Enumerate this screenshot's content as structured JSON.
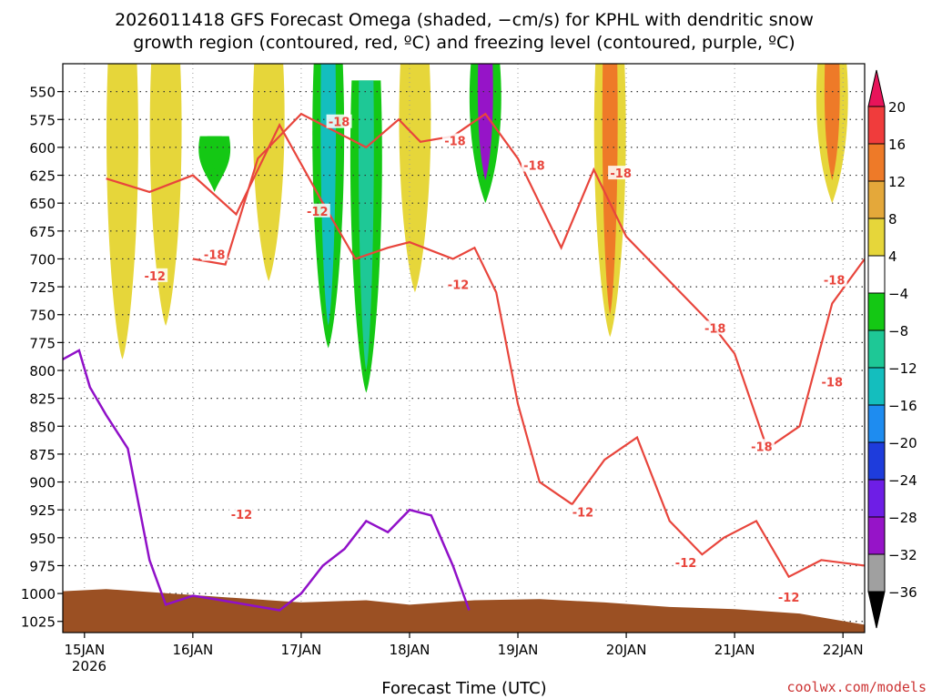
{
  "title_line1": "2026011418 GFS Forecast Omega (shaded, −cm/s) for KPHL with dendritic snow",
  "title_line2": "growth region (contoured, red, ºC) and freezing level (contoured, purple, ºC)",
  "credit": "coolwx.com/models",
  "chart_data": {
    "type": "heatmap",
    "xlabel": "Forecast Time (UTC)",
    "x_ticks": [
      "15JAN",
      "16JAN",
      "17JAN",
      "18JAN",
      "19JAN",
      "20JAN",
      "21JAN",
      "22JAN"
    ],
    "x_year_label": "2026",
    "x_range_days": [
      14.8,
      22.2
    ],
    "y_ticks": [
      550,
      575,
      600,
      625,
      650,
      675,
      700,
      725,
      750,
      775,
      800,
      825,
      850,
      875,
      900,
      925,
      950,
      975,
      1000,
      1025
    ],
    "y_range_hpa": [
      525,
      1035
    ],
    "colorbar": {
      "labels": [
        "20",
        "16",
        "12",
        "8",
        "4",
        "−4",
        "−8",
        "−12",
        "−16",
        "−20",
        "−24",
        "−28",
        "−32",
        "−36"
      ],
      "colors": [
        "#e8145a",
        "#f03c3c",
        "#ee7a28",
        "#e4a83a",
        "#e6d63a",
        "#ffffff",
        "#14c814",
        "#1ec896",
        "#14bebe",
        "#1e8cf0",
        "#1e3cdc",
        "#6e1ee6",
        "#9614c8",
        "#a0a0a0",
        "#000000"
      ]
    },
    "grid": true,
    "ascent_columns": [
      {
        "day": 15.35,
        "top": 525,
        "bottom": 790,
        "value": 4
      },
      {
        "day": 15.75,
        "top": 525,
        "bottom": 760,
        "value": 4
      },
      {
        "day": 16.2,
        "top": 590,
        "bottom": 640,
        "value": -4
      },
      {
        "day": 16.7,
        "top": 525,
        "bottom": 720,
        "value": 4
      },
      {
        "day": 17.25,
        "top": 525,
        "bottom": 780,
        "value": -12
      },
      {
        "day": 17.6,
        "top": 540,
        "bottom": 820,
        "value": -8
      },
      {
        "day": 18.05,
        "top": 525,
        "bottom": 730,
        "value": 4
      },
      {
        "day": 18.7,
        "top": 525,
        "bottom": 650,
        "value": -28
      },
      {
        "day": 19.85,
        "top": 525,
        "bottom": 770,
        "value": 12
      },
      {
        "day": 21.9,
        "top": 525,
        "bottom": 650,
        "value": 12
      }
    ],
    "dendritic_isotherms": [
      {
        "label": "-12",
        "path": [
          [
            15.2,
            628
          ],
          [
            15.6,
            640
          ],
          [
            16.0,
            625
          ],
          [
            16.4,
            660
          ],
          [
            16.8,
            580
          ],
          [
            17.2,
            650
          ],
          [
            17.5,
            700
          ],
          [
            17.8,
            690
          ],
          [
            18.0,
            685
          ],
          [
            18.4,
            700
          ],
          [
            18.6,
            690
          ],
          [
            18.8,
            730
          ],
          [
            19.0,
            830
          ],
          [
            19.2,
            900
          ],
          [
            19.5,
            920
          ],
          [
            19.8,
            880
          ],
          [
            20.1,
            860
          ],
          [
            20.4,
            935
          ],
          [
            20.7,
            965
          ],
          [
            20.9,
            950
          ],
          [
            21.2,
            935
          ],
          [
            21.5,
            985
          ],
          [
            21.8,
            970
          ],
          [
            22.2,
            975
          ]
        ]
      },
      {
        "label": "-18",
        "path": [
          [
            16.0,
            700
          ],
          [
            16.3,
            705
          ],
          [
            16.6,
            610
          ],
          [
            17.0,
            570
          ],
          [
            17.3,
            585
          ],
          [
            17.6,
            600
          ],
          [
            17.9,
            575
          ],
          [
            18.1,
            595
          ],
          [
            18.4,
            590
          ],
          [
            18.7,
            570
          ],
          [
            19.0,
            610
          ],
          [
            19.4,
            690
          ],
          [
            19.7,
            620
          ],
          [
            20.0,
            680
          ],
          [
            20.3,
            710
          ],
          [
            20.8,
            760
          ],
          [
            21.0,
            785
          ],
          [
            21.3,
            870
          ],
          [
            21.6,
            850
          ],
          [
            21.9,
            740
          ],
          [
            22.2,
            700
          ]
        ]
      }
    ],
    "dendritic_labels": [
      {
        "label": "-18",
        "day": 17.35,
        "hpa": 577
      },
      {
        "label": "-18",
        "day": 18.42,
        "hpa": 594
      },
      {
        "label": "-18",
        "day": 19.15,
        "hpa": 616
      },
      {
        "label": "-18",
        "day": 19.95,
        "hpa": 623
      },
      {
        "label": "-18",
        "day": 16.2,
        "hpa": 696
      },
      {
        "label": "-18",
        "day": 20.82,
        "hpa": 762
      },
      {
        "label": "-18",
        "day": 21.25,
        "hpa": 868
      },
      {
        "label": "-18",
        "day": 21.92,
        "hpa": 719
      },
      {
        "label": "-18",
        "day": 21.9,
        "hpa": 810
      },
      {
        "label": "-12",
        "day": 15.65,
        "hpa": 715
      },
      {
        "label": "-12",
        "day": 17.15,
        "hpa": 657
      },
      {
        "label": "-12",
        "day": 18.45,
        "hpa": 723
      },
      {
        "label": "-12",
        "day": 16.45,
        "hpa": 929
      },
      {
        "label": "-12",
        "day": 19.6,
        "hpa": 927
      },
      {
        "label": "-12",
        "day": 20.55,
        "hpa": 972
      },
      {
        "label": "-12",
        "day": 21.5,
        "hpa": 1003
      }
    ],
    "freezing_level": [
      [
        14.8,
        790
      ],
      [
        14.95,
        782
      ],
      [
        15.05,
        815
      ],
      [
        15.2,
        840
      ],
      [
        15.4,
        870
      ],
      [
        15.6,
        970
      ],
      [
        15.75,
        1010
      ],
      [
        16.0,
        1002
      ],
      [
        16.2,
        1005
      ],
      [
        16.5,
        1010
      ],
      [
        16.8,
        1015
      ],
      [
        17.0,
        1000
      ],
      [
        17.2,
        975
      ],
      [
        17.4,
        960
      ],
      [
        17.6,
        935
      ],
      [
        17.8,
        945
      ],
      [
        18.0,
        925
      ],
      [
        18.2,
        930
      ],
      [
        18.4,
        975
      ],
      [
        18.55,
        1015
      ]
    ],
    "ground_surface": [
      [
        14.8,
        998
      ],
      [
        15.2,
        996
      ],
      [
        15.8,
        1000
      ],
      [
        16.4,
        1004
      ],
      [
        17.0,
        1008
      ],
      [
        17.6,
        1006
      ],
      [
        18.0,
        1010
      ],
      [
        18.6,
        1006
      ],
      [
        19.2,
        1005
      ],
      [
        19.8,
        1008
      ],
      [
        20.4,
        1012
      ],
      [
        21.0,
        1014
      ],
      [
        21.6,
        1018
      ],
      [
        22.2,
        1028
      ]
    ]
  }
}
